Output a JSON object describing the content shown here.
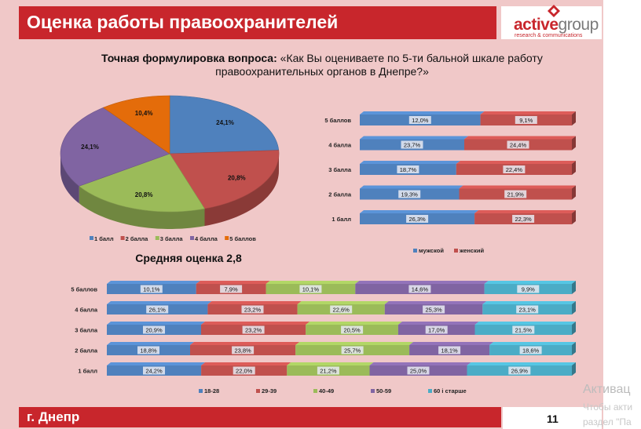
{
  "slide": {
    "title": "Оценка работы правоохранителей",
    "question_bold": "Точная формулировка вопроса:",
    "question_text": " «Как Вы оцениваете по 5-ти бальной шкале работу правоохранительных органов в Днепре?»",
    "logo_a": "active",
    "logo_b": "group",
    "logo_tagline": "research & communications",
    "city": "г. Днепр",
    "page_number": "11"
  },
  "watermark": {
    "line1": "Активац",
    "line2": "Чтобы акти",
    "line3": "раздел \"Па"
  },
  "colors": {
    "blue": "#4f81bd",
    "red": "#c0504d",
    "green": "#9bbb59",
    "purple": "#8064a2",
    "orange": "#e46c0a",
    "cyan": "#4bacc6",
    "brand": "#c8262c"
  },
  "chart_data": [
    {
      "type": "pie",
      "title": "Средняя оценка 2,8",
      "categories": [
        "1 балл",
        "2 балла",
        "3 балла",
        "4 балла",
        "5 баллов"
      ],
      "values": [
        24.1,
        20.8,
        20.8,
        24.1,
        10.4
      ],
      "value_labels": [
        "24,1%",
        "20,8%",
        "20,8%",
        "24,1%",
        "10,4%"
      ],
      "legend": "bottom"
    },
    {
      "type": "bar",
      "stacked": true,
      "orientation": "horizontal",
      "categories": [
        "5 баллов",
        "4 балла",
        "3 балла",
        "2 балла",
        "1 балл"
      ],
      "series": [
        {
          "name": "мужской",
          "values": [
            12.0,
            23.7,
            18.7,
            19.3,
            26.3
          ],
          "labels": [
            "12,0%",
            "23,7%",
            "18,7%",
            "19,3%",
            "26,3%"
          ]
        },
        {
          "name": "женский",
          "values": [
            9.1,
            24.4,
            22.4,
            21.9,
            22.3
          ],
          "labels": [
            "9,1%",
            "24,4%",
            "22,4%",
            "21,9%",
            "22,3%"
          ]
        }
      ],
      "legend": "bottom"
    },
    {
      "type": "bar",
      "stacked": true,
      "orientation": "horizontal",
      "categories": [
        "5 баллов",
        "4 балла",
        "3 балла",
        "2 балла",
        "1 балл"
      ],
      "series": [
        {
          "name": "18-28",
          "values": [
            10.1,
            26.1,
            20.9,
            18.8,
            24.2
          ],
          "labels": [
            "10,1%",
            "26,1%",
            "20,9%",
            "18,8%",
            "24,2%"
          ]
        },
        {
          "name": "29-39",
          "values": [
            7.9,
            23.2,
            23.2,
            23.8,
            22.0
          ],
          "labels": [
            "7,9%",
            "23,2%",
            "23,2%",
            "23,8%",
            "22,0%"
          ]
        },
        {
          "name": "40-49",
          "values": [
            10.1,
            22.6,
            20.5,
            25.7,
            21.2
          ],
          "labels": [
            "10,1%",
            "22,6%",
            "20,5%",
            "25,7%",
            "21,2%"
          ]
        },
        {
          "name": "50-59",
          "values": [
            14.6,
            25.3,
            17.0,
            18.1,
            25.0
          ],
          "labels": [
            "14,6%",
            "25,3%",
            "17,0%",
            "18,1%",
            "25,0%"
          ]
        },
        {
          "name": "60 і старше",
          "values": [
            9.9,
            23.1,
            21.5,
            18.6,
            26.9
          ],
          "labels": [
            "9,9%",
            "23,1%",
            "21,5%",
            "18,6%",
            "26,9%"
          ]
        }
      ],
      "legend": "bottom"
    }
  ]
}
